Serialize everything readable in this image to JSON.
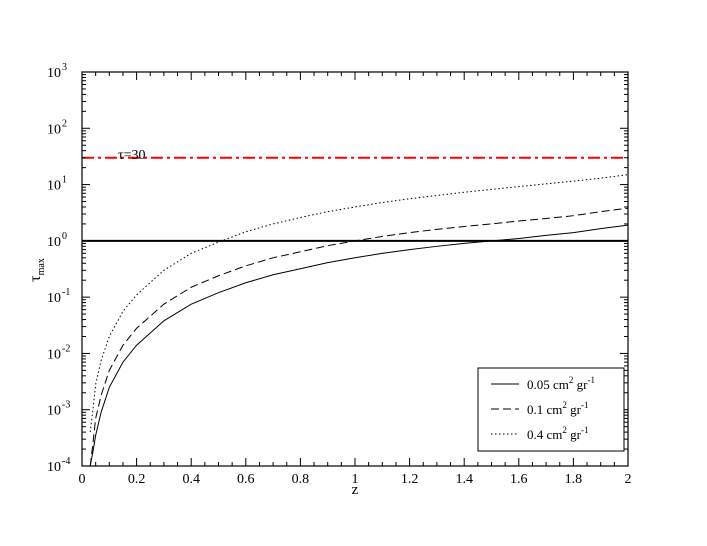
{
  "chart_data": {
    "type": "line",
    "title": "",
    "xlabel": "z",
    "ylabel_base": "τ",
    "ylabel_sub": "max",
    "xlim": [
      0,
      2
    ],
    "ylim": [
      0.0001,
      1000
    ],
    "yscale": "log",
    "grid": false,
    "legend_placement": "bottom-right",
    "x_ticks": [
      0,
      0.2,
      0.4,
      0.6,
      0.8,
      1,
      1.2,
      1.4,
      1.6,
      1.8,
      2
    ],
    "x_tick_labels": [
      "0",
      "0.2",
      "0.4",
      "0.6",
      "0.8",
      "1",
      "1.2",
      "1.4",
      "1.6",
      "1.8",
      "2"
    ],
    "y_ticks": [
      {
        "value": 0.0001,
        "base": "10",
        "exp": "-4"
      },
      {
        "value": 0.001,
        "base": "10",
        "exp": "-3"
      },
      {
        "value": 0.01,
        "base": "10",
        "exp": "-2"
      },
      {
        "value": 0.1,
        "base": "10",
        "exp": "-1"
      },
      {
        "value": 1,
        "base": "10",
        "exp": "0"
      },
      {
        "value": 10,
        "base": "10",
        "exp": "1"
      },
      {
        "value": 100,
        "base": "10",
        "exp": "2"
      },
      {
        "value": 1000,
        "base": "10",
        "exp": "3"
      }
    ],
    "x": [
      0.03,
      0.04,
      0.05,
      0.07,
      0.1,
      0.15,
      0.2,
      0.3,
      0.4,
      0.5,
      0.6,
      0.7,
      0.8,
      0.9,
      1.0,
      1.1,
      1.2,
      1.3,
      1.4,
      1.5,
      1.6,
      1.7,
      1.8,
      1.9,
      2.0
    ],
    "series": [
      {
        "legend_parts": [
          "0.05 cm",
          "2",
          " gr",
          "-1"
        ],
        "dash": "solid",
        "values": [
          0.0001,
          0.00018,
          0.00035,
          0.0009,
          0.0025,
          0.007,
          0.014,
          0.038,
          0.075,
          0.12,
          0.18,
          0.25,
          0.32,
          0.41,
          0.5,
          0.6,
          0.7,
          0.8,
          0.9,
          1.0,
          1.1,
          1.25,
          1.4,
          1.65,
          1.9
        ]
      },
      {
        "legend_parts": [
          "0.1 cm",
          "2",
          " gr",
          "-1"
        ],
        "dash": "dashed",
        "values": [
          0.0001,
          0.00025,
          0.0007,
          0.0018,
          0.005,
          0.014,
          0.028,
          0.075,
          0.15,
          0.24,
          0.36,
          0.5,
          0.64,
          0.82,
          1.0,
          1.2,
          1.4,
          1.6,
          1.8,
          2.0,
          2.25,
          2.5,
          2.8,
          3.3,
          3.8
        ]
      },
      {
        "legend_parts": [
          "0.4 cm",
          "2",
          " gr",
          "-1"
        ],
        "dash": "dotted",
        "values": [
          0.0004,
          0.001,
          0.0028,
          0.0075,
          0.02,
          0.056,
          0.11,
          0.3,
          0.6,
          0.95,
          1.45,
          2.0,
          2.6,
          3.3,
          4.0,
          4.8,
          5.6,
          6.4,
          7.3,
          8.2,
          9.2,
          10.3,
          11.5,
          13.0,
          15.0
        ]
      }
    ],
    "reference_lines": [
      {
        "y": 1,
        "style": "solid-thick",
        "color": "#000000"
      },
      {
        "y": 30,
        "style": "dash-dot",
        "color": "#ff0000",
        "label": "τ=30"
      }
    ]
  }
}
